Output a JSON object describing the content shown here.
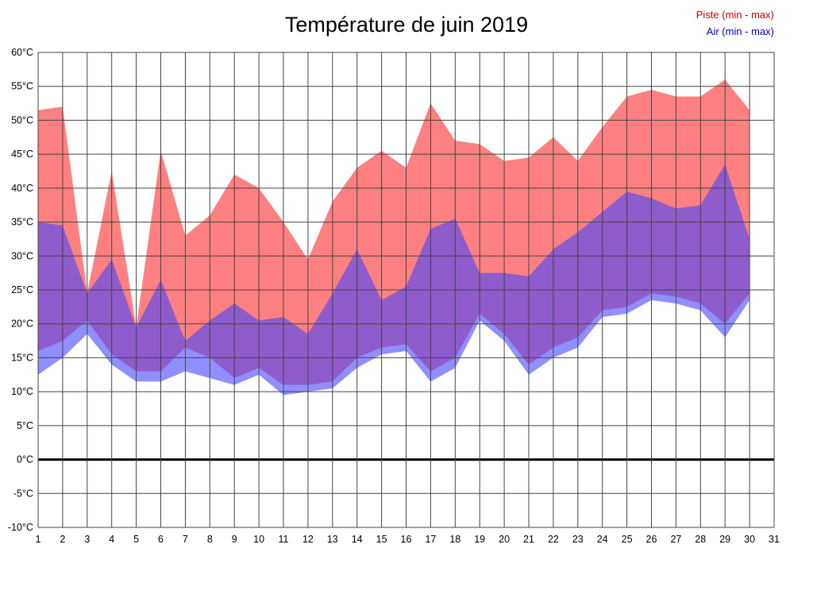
{
  "chart_data": {
    "type": "area",
    "title": "Température de juin 2019",
    "legend": [
      {
        "label": "Piste (min - max)",
        "color": "#cc0000"
      },
      {
        "label": "Air (min - max)",
        "color": "#0000cc"
      }
    ],
    "xlim": [
      1,
      31
    ],
    "ylim": [
      -10,
      60
    ],
    "grid": true,
    "x": [
      1,
      2,
      3,
      4,
      5,
      6,
      7,
      8,
      9,
      10,
      11,
      12,
      13,
      14,
      15,
      16,
      17,
      18,
      19,
      20,
      21,
      22,
      23,
      24,
      25,
      26,
      27,
      28,
      29,
      30
    ],
    "series": {
      "piste": {
        "name": "Piste (min - max)",
        "min": [
          16,
          17.5,
          20.5,
          15.5,
          13,
          13,
          16.5,
          15,
          12,
          13.5,
          11,
          11,
          11.5,
          15,
          16.5,
          17,
          13,
          15,
          21.5,
          18.5,
          14,
          16.5,
          18,
          22,
          22.5,
          24.5,
          24,
          23,
          20,
          24.5
        ],
        "max": [
          51.5,
          52,
          24.5,
          42.5,
          19.5,
          45.5,
          33,
          36,
          42,
          40,
          35,
          29.5,
          38,
          43,
          45.5,
          43,
          52.5,
          47,
          46.5,
          44,
          44.5,
          47.5,
          44,
          49,
          53.5,
          54.5,
          53.5,
          53.5,
          56,
          51.5
        ]
      },
      "air": {
        "name": "Air (min - max)",
        "min": [
          12.5,
          15,
          18.5,
          14,
          11.5,
          11.5,
          13,
          12,
          11,
          12.5,
          9.5,
          10,
          10.5,
          13.5,
          15.5,
          16,
          11.5,
          13.5,
          20.5,
          17.5,
          12.5,
          15,
          16.5,
          21,
          21.5,
          23.5,
          23,
          22,
          18,
          23.5
        ],
        "max": [
          35,
          34.5,
          24.5,
          29.5,
          19.5,
          26.5,
          17.5,
          20.5,
          23,
          20.5,
          21,
          18.5,
          24.5,
          31,
          23.5,
          25.5,
          34,
          35.5,
          27.5,
          27.5,
          27,
          31,
          33.5,
          36.5,
          39.5,
          38.5,
          37,
          37.5,
          43.5,
          32.5
        ]
      }
    },
    "y_ticks": [
      {
        "value": 60,
        "label": "60°C"
      },
      {
        "value": 55,
        "label": "55°C"
      },
      {
        "value": 50,
        "label": "50°C"
      },
      {
        "value": 45,
        "label": "45°C"
      },
      {
        "value": 40,
        "label": "40°C"
      },
      {
        "value": 35,
        "label": "35°C"
      },
      {
        "value": 30,
        "label": "30°C"
      },
      {
        "value": 25,
        "label": "25°C"
      },
      {
        "value": 20,
        "label": "20°C"
      },
      {
        "value": 15,
        "label": "15°C"
      },
      {
        "value": 10,
        "label": "10°C"
      },
      {
        "value": 5,
        "label": "5°C"
      },
      {
        "value": 0,
        "label": "0°C"
      },
      {
        "value": -5,
        "label": "-5°C"
      },
      {
        "value": -10,
        "label": "-10°C"
      }
    ],
    "x_ticks": [
      1,
      2,
      3,
      4,
      5,
      6,
      7,
      8,
      9,
      10,
      11,
      12,
      13,
      14,
      15,
      16,
      17,
      18,
      19,
      20,
      21,
      22,
      23,
      24,
      25,
      26,
      27,
      28,
      29,
      30,
      31
    ],
    "colors": {
      "piste_fill": "#ff8080",
      "air_fill": "rgba(68,68,255,0.60)",
      "grid": "#444444",
      "zero_line": "#000000",
      "text": "#000000"
    }
  }
}
